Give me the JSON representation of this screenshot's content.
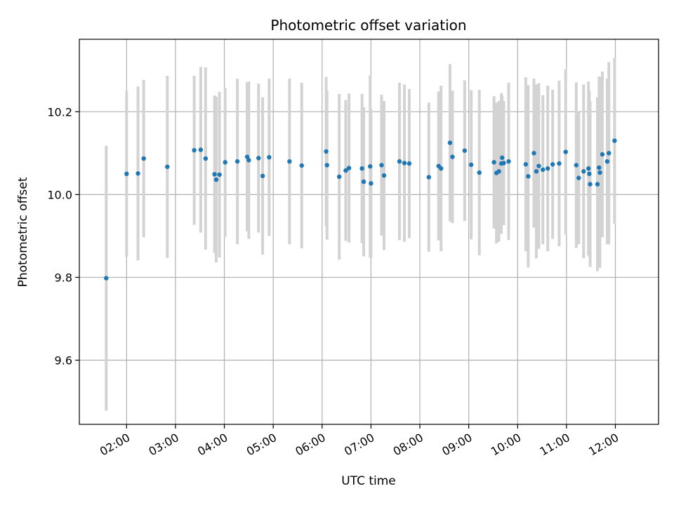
{
  "chart_data": {
    "type": "scatter",
    "title": "Photometric offset variation",
    "xlabel": "UTC time",
    "ylabel": "Photometric offset",
    "grid": true,
    "xlim": [
      "01:02",
      "12:53"
    ],
    "ylim": [
      9.445,
      10.375
    ],
    "x_ticks": [
      "02:00",
      "03:00",
      "04:00",
      "05:00",
      "06:00",
      "07:00",
      "08:00",
      "09:00",
      "10:00",
      "11:00",
      "12:00"
    ],
    "y_ticks": [
      "9.6",
      "9.8",
      "10.0",
      "10.2"
    ],
    "colors": {
      "points": "#1f77b4",
      "error_bars": "#d3d3d3",
      "grid": "#b0b0b0"
    },
    "x": [
      "01:35",
      "02:00",
      "02:14",
      "02:21",
      "02:50",
      "03:23",
      "03:31",
      "03:37",
      "03:48",
      "03:50",
      "03:54",
      "04:01",
      "04:16",
      "04:28",
      "04:30",
      "04:42",
      "04:47",
      "04:55",
      "05:20",
      "05:35",
      "06:05",
      "06:06",
      "06:21",
      "06:29",
      "06:33",
      "06:49",
      "06:51",
      "06:59",
      "07:00",
      "07:13",
      "07:16",
      "07:35",
      "07:41",
      "07:47",
      "08:11",
      "08:23",
      "08:26",
      "08:37",
      "08:40",
      "08:55",
      "09:03",
      "09:13",
      "09:31",
      "09:34",
      "09:37",
      "09:40",
      "09:41",
      "09:43",
      "09:49",
      "10:10",
      "10:13",
      "10:20",
      "10:23",
      "10:26",
      "10:31",
      "10:37",
      "10:43",
      "10:51",
      "10:59",
      "11:12",
      "11:15",
      "11:21",
      "11:27",
      "11:28",
      "11:29",
      "11:38",
      "11:40",
      "11:41",
      "11:44",
      "11:50",
      "11:52",
      "11:59"
    ],
    "series": [
      {
        "y": [
          9.798,
          10.05,
          10.051,
          10.087,
          10.067,
          10.107,
          10.108,
          10.087,
          10.049,
          10.036,
          10.048,
          10.078,
          10.08,
          10.091,
          10.083,
          10.088,
          10.045,
          10.09,
          10.08,
          10.07,
          10.104,
          10.071,
          10.043,
          10.058,
          10.064,
          10.063,
          10.031,
          10.068,
          10.027,
          10.071,
          10.046,
          10.08,
          10.076,
          10.075,
          10.042,
          10.069,
          10.063,
          10.125,
          10.091,
          10.106,
          10.072,
          10.053,
          10.078,
          10.052,
          10.056,
          10.075,
          10.089,
          10.076,
          10.08,
          10.073,
          10.044,
          10.1,
          10.056,
          10.069,
          10.06,
          10.063,
          10.073,
          10.075,
          10.103,
          10.071,
          10.04,
          10.056,
          10.063,
          10.05,
          10.025,
          10.025,
          10.065,
          10.053,
          10.097,
          10.08,
          10.1,
          10.13
        ],
        "yerr": [
          0.32,
          0.2,
          0.21,
          0.19,
          0.22,
          0.18,
          0.2,
          0.22,
          0.19,
          0.2,
          0.2,
          0.18,
          0.2,
          0.18,
          0.19,
          0.18,
          0.19,
          0.19,
          0.2,
          0.2,
          0.18,
          0.18,
          0.2,
          0.17,
          0.18,
          0.18,
          0.18,
          0.22,
          0.18,
          0.17,
          0.18,
          0.19,
          0.19,
          0.18,
          0.18,
          0.18,
          0.2,
          0.19,
          0.16,
          0.17,
          0.18,
          0.2,
          0.16,
          0.17,
          0.17,
          0.17,
          0.15,
          0.15,
          0.19,
          0.21,
          0.22,
          0.18,
          0.21,
          0.2,
          0.18,
          0.2,
          0.18,
          0.2,
          0.2,
          0.2,
          0.16,
          0.21,
          0.21,
          0.2,
          0.2,
          0.21,
          0.22,
          0.23,
          0.2,
          0.2,
          0.22,
          0.2
        ]
      }
    ]
  }
}
